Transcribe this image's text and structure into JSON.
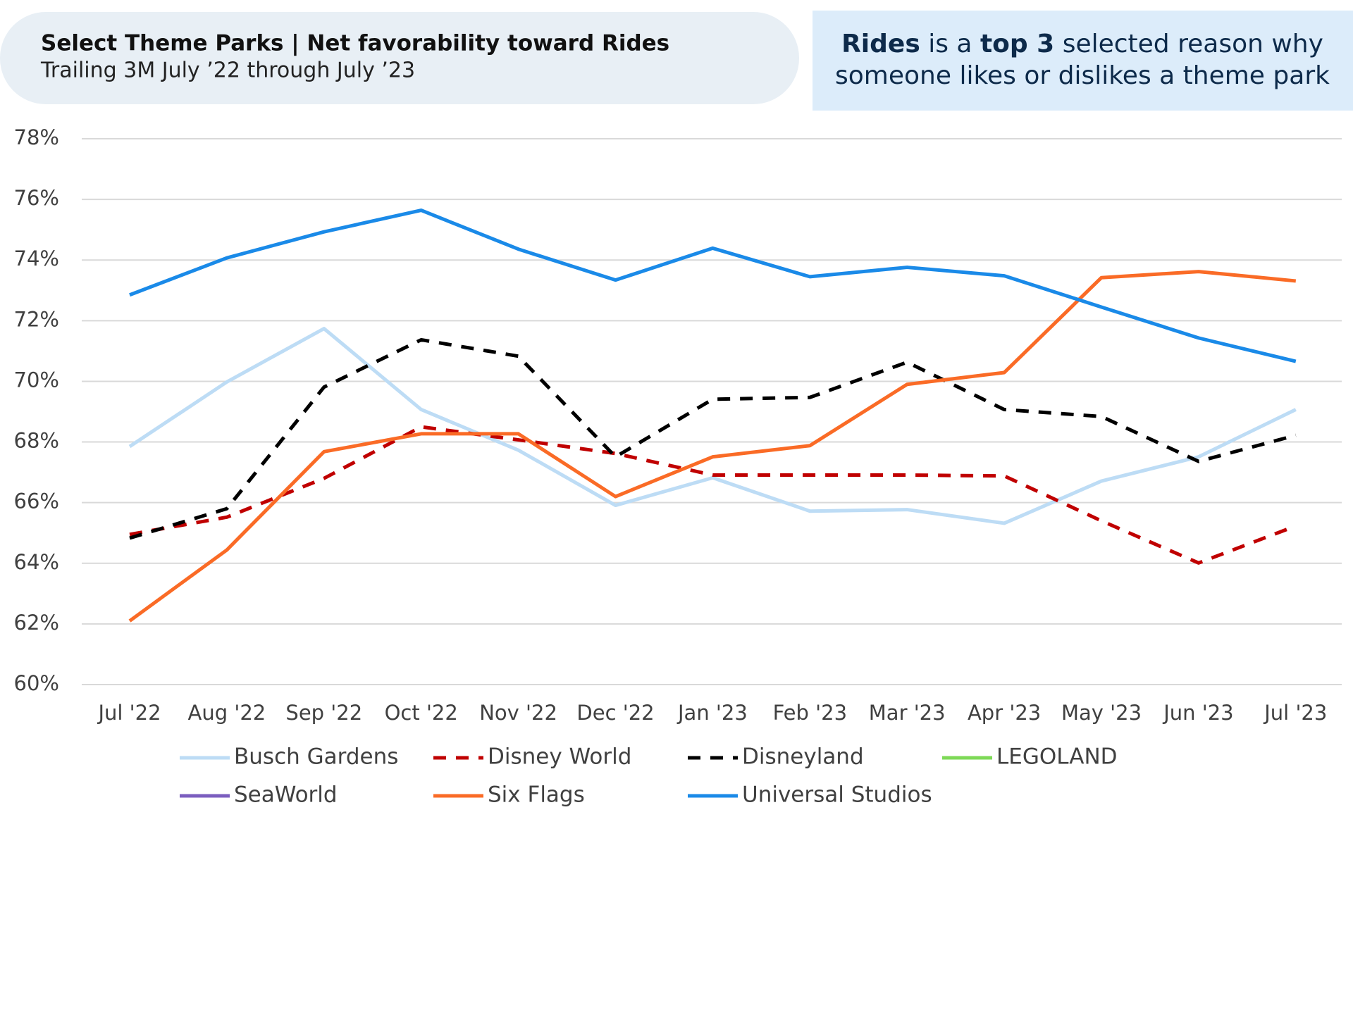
{
  "header": {
    "title": "Select Theme Parks | Net favorability toward Rides",
    "subtitle": "Trailing 3M July ’22 through July ’23"
  },
  "callout": {
    "parts": [
      "Rides",
      "is a",
      "top 3",
      "selected reason why"
    ],
    "line2": "someone likes or dislikes a theme park"
  },
  "chart_data": {
    "type": "line",
    "categories": [
      "Jul '22",
      "Aug '22",
      "Sep '22",
      "Oct '22",
      "Nov '22",
      "Dec '22",
      "Jan '23",
      "Feb '23",
      "Mar '23",
      "Apr '23",
      "May '23",
      "Jun '23",
      "Jul '23"
    ],
    "series": [
      {
        "name": "Busch Gardens",
        "color": "#bddcf5",
        "dashed": false,
        "values": [
          67.85,
          69.98,
          71.74,
          69.07,
          67.73,
          65.91,
          66.82,
          65.72,
          65.77,
          65.32,
          66.71,
          67.51,
          69.07
        ]
      },
      {
        "name": "Disney World",
        "color": "#c00000",
        "dashed": true,
        "values": [
          64.95,
          65.52,
          66.8,
          68.5,
          68.07,
          67.62,
          66.91,
          66.91,
          66.91,
          66.88,
          65.4,
          64.01,
          65.23
        ]
      },
      {
        "name": "Disneyland",
        "color": "#000000",
        "dashed": true,
        "values": [
          64.83,
          65.8,
          69.81,
          71.37,
          70.83,
          67.51,
          69.41,
          69.47,
          70.63,
          69.07,
          68.84,
          67.36,
          68.22
        ]
      },
      {
        "name": "LEGOLAND",
        "color": "#7ed957",
        "dashed": false,
        "values": [
          null,
          null,
          null,
          null,
          null,
          null,
          null,
          null,
          null,
          null,
          null,
          null,
          null
        ]
      },
      {
        "name": "SeaWorld",
        "color": "#7b5ebf",
        "dashed": false,
        "values": [
          null,
          null,
          null,
          null,
          null,
          null,
          null,
          null,
          null,
          null,
          null,
          null,
          null
        ]
      },
      {
        "name": "Six Flags",
        "color": "#fa6b26",
        "dashed": false,
        "values": [
          62.1,
          64.44,
          67.68,
          68.27,
          68.27,
          66.2,
          67.51,
          67.88,
          69.9,
          70.29,
          73.42,
          73.62,
          73.31
        ]
      },
      {
        "name": "Universal Studios",
        "color": "#1a8ae8",
        "dashed": false,
        "values": [
          72.85,
          74.07,
          74.93,
          75.64,
          74.36,
          73.34,
          74.39,
          73.45,
          73.76,
          73.48,
          72.45,
          71.43,
          70.66
        ]
      }
    ],
    "ylim": [
      60,
      78
    ],
    "yticks": [
      {
        "value": 60,
        "label": "60%"
      },
      {
        "value": 62,
        "label": "62%"
      },
      {
        "value": 64,
        "label": "64%"
      },
      {
        "value": 66,
        "label": "66%"
      },
      {
        "value": 68,
        "label": "68%"
      },
      {
        "value": 70,
        "label": "70%"
      },
      {
        "value": 72,
        "label": "72%"
      },
      {
        "value": 74,
        "label": "74%"
      },
      {
        "value": 76,
        "label": "76%"
      },
      {
        "value": 78,
        "label": "78%"
      }
    ],
    "grid": true
  }
}
